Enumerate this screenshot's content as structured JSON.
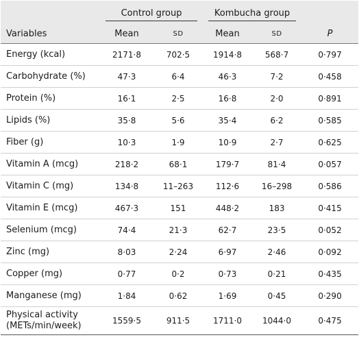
{
  "table": {
    "group_headers": [
      "Control group",
      "Kombucha group"
    ],
    "column_headers": [
      "Variables",
      "Mean",
      "SD",
      "Mean",
      "SD",
      "P"
    ],
    "rows": [
      [
        "Energy (kcal)",
        "2171·8",
        "702·5",
        "1914·8",
        "568·7",
        "0·797"
      ],
      [
        "Carbohydrate (%)",
        "47·3",
        "6·4",
        "46·3",
        "7·2",
        "0·458"
      ],
      [
        "Protein (%)",
        "16·1",
        "2·5",
        "16·8",
        "2·0",
        "0·891"
      ],
      [
        "Lipids (%)",
        "35·8",
        "5·6",
        "35·4",
        "6·2",
        "0·585"
      ],
      [
        "Fiber (g)",
        "10·3",
        "1·9",
        "10·9",
        "2·7",
        "0·625"
      ],
      [
        "Vitamin A (mcg)",
        "218·2",
        "68·1",
        "179·7",
        "81·4",
        "0·057"
      ],
      [
        "Vitamin C (mg)",
        "134·8",
        "11–263",
        "112·6",
        "16–298",
        "0·586"
      ],
      [
        "Vitamin E (mcg)",
        "467·3",
        "151",
        "448·2",
        "183",
        "0·415"
      ],
      [
        "Selenium (mcg)",
        "74·4",
        "21·3",
        "62·7",
        "23·5",
        "0·052"
      ],
      [
        "Zinc (mg)",
        "8·03",
        "2·24",
        "6·97",
        "2·46",
        "0·092"
      ],
      [
        "Copper (mg)",
        "0·77",
        "0·2",
        "0·73",
        "0·21",
        "0·435"
      ],
      [
        "Manganese (mg)",
        "1·84",
        "0·62",
        "1·69",
        "0·45",
        "0·290"
      ],
      [
        "Physical activity (METs/min/week)",
        "1559·5",
        "911·5",
        "1711·0",
        "1044·0",
        "0·475"
      ]
    ]
  }
}
